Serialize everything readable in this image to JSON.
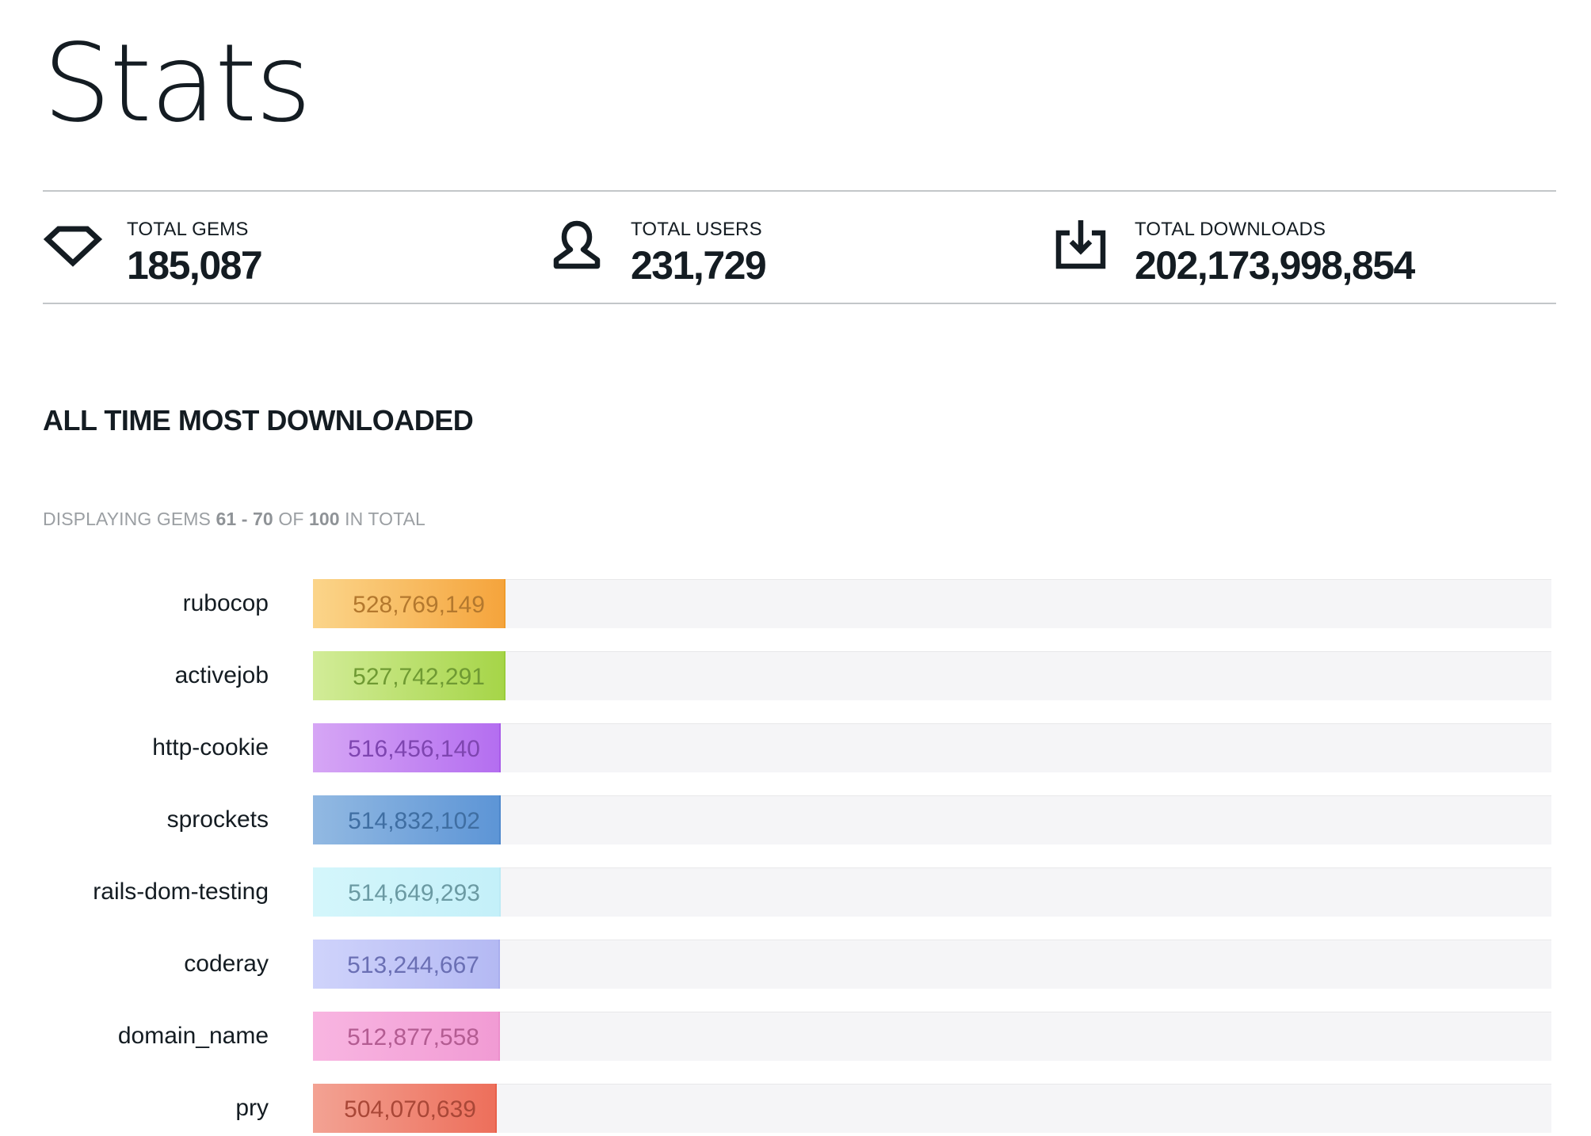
{
  "page": {
    "title": "Stats"
  },
  "stats": [
    {
      "label": "TOTAL GEMS",
      "value": "185,087",
      "icon": "gem-icon"
    },
    {
      "label": "TOTAL USERS",
      "value": "231,729",
      "icon": "user-icon"
    },
    {
      "label": "TOTAL DOWNLOADS",
      "value": "202,173,998,854",
      "icon": "download-icon"
    }
  ],
  "section": {
    "title": "ALL TIME MOST DOWNLOADED"
  },
  "pagination": {
    "prefix": "DISPLAYING GEMS",
    "from": "61",
    "dash": "-",
    "to": "70",
    "of_text": "OF",
    "total": "100",
    "suffix": "IN TOTAL"
  },
  "chart_data": {
    "type": "bar",
    "orientation": "horizontal",
    "categories": [
      "rubocop",
      "activejob",
      "http-cookie",
      "sprockets",
      "rails-dom-testing",
      "coderay",
      "domain_name",
      "pry"
    ],
    "values": [
      528769149,
      527742291,
      516456140,
      514832102,
      514649293,
      513244667,
      512877558,
      504070639
    ],
    "labels": [
      "528,769,149",
      "527,742,291",
      "516,456,140",
      "514,832,102",
      "514,649,293",
      "513,244,667",
      "512,877,558",
      "504,070,639"
    ],
    "colors": [
      {
        "start": "#fbd58a",
        "end": "#f5a43c",
        "text": "#b3782e",
        "edge": "#ef9b2b"
      },
      {
        "start": "#d2ec98",
        "end": "#a6d548",
        "text": "#6f9a33",
        "edge": "#99cc3a"
      },
      {
        "start": "#d6a6f5",
        "end": "#b46ef0",
        "text": "#7e45b0",
        "edge": "#a95ce8"
      },
      {
        "start": "#92b9e2",
        "end": "#5d95d6",
        "text": "#3f6ea2",
        "edge": "#4f88cc"
      },
      {
        "start": "#d4f6fb",
        "end": "#c4f0f9",
        "text": "#6b9aa3",
        "edge": "#bdebf5"
      },
      {
        "start": "#cfd3fb",
        "end": "#b4b9f3",
        "text": "#6a6fb4",
        "edge": "#a9aeee"
      },
      {
        "start": "#f8b5e1",
        "end": "#f19bd4",
        "text": "#b35c92",
        "edge": "#ec8fcc"
      },
      {
        "start": "#f3a293",
        "end": "#ed6f5b",
        "text": "#a94737",
        "edge": "#e8604a"
      }
    ],
    "axis_max": 3400000000
  }
}
